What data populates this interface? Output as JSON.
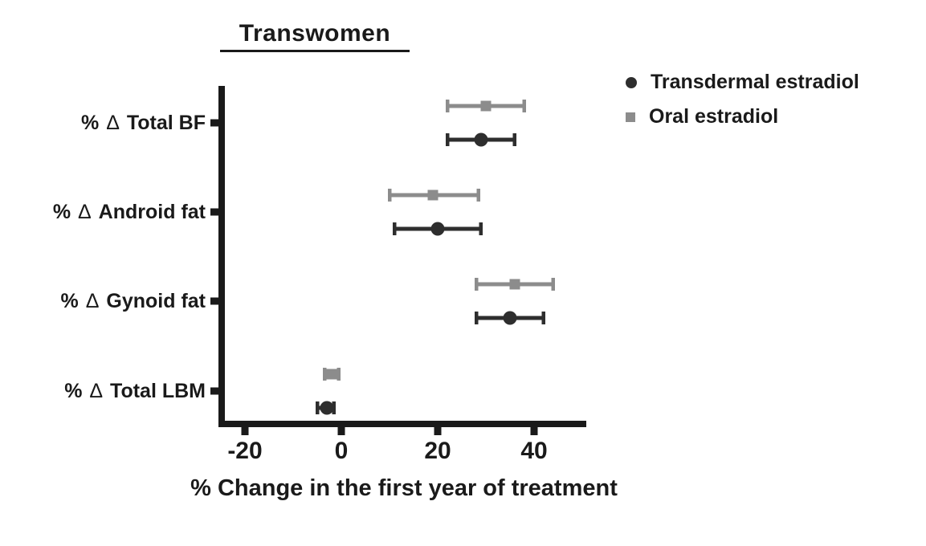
{
  "title": "Transwomen",
  "ink_color": "#1a1a1a",
  "legend": {
    "items": [
      {
        "label": "Transdermal estradiol",
        "marker": "circle",
        "color": "#2e2e2e"
      },
      {
        "label": "Oral estradiol",
        "marker": "square",
        "color": "#8c8c8c"
      }
    ]
  },
  "chart_data": {
    "type": "scatter",
    "subtype": "horizontal-dot-plot-with-error-bars",
    "title": "Transwomen",
    "xlabel": "% Change in the first year of treatment",
    "ylabel": "",
    "categories": [
      "% Δ Total BF",
      "% Δ Android fat",
      "% Δ Gynoid fat",
      "% Δ Total LBM"
    ],
    "x_ticks": [
      -20,
      0,
      20,
      40
    ],
    "xlim": [
      -25.5,
      50.8
    ],
    "grid": false,
    "legend_position": "top-right",
    "series": [
      {
        "name": "Transdermal estradiol",
        "marker": "circle",
        "color": "#2e2e2e",
        "values": [
          29,
          20,
          35,
          -3
        ],
        "ci_low": [
          22,
          11,
          28,
          -5
        ],
        "ci_high": [
          36,
          29,
          42,
          -1.5
        ]
      },
      {
        "name": "Oral estradiol",
        "marker": "square",
        "color": "#8c8c8c",
        "values": [
          30,
          19,
          36,
          -2
        ],
        "ci_low": [
          22,
          10,
          28,
          -3.5
        ],
        "ci_high": [
          38,
          28.5,
          44,
          -0.5
        ]
      }
    ]
  }
}
